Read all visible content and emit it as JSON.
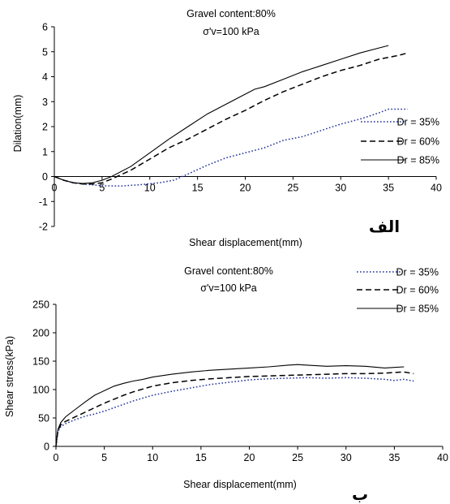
{
  "chart_data": [
    {
      "type": "line",
      "title_lines": [
        "Gravel content:80%",
        "σ'v=100 kPa"
      ],
      "xlabel": "Shear displacement(mm)",
      "ylabel": "Dilation(mm)",
      "panel_label": "الف",
      "xlim": [
        0,
        40
      ],
      "ylim": [
        -2,
        6
      ],
      "xticks": [
        0,
        5,
        10,
        15,
        20,
        25,
        30,
        35,
        40
      ],
      "yticks": [
        -2,
        -1,
        0,
        1,
        2,
        3,
        4,
        5,
        6
      ],
      "legend_position": "right",
      "grid": false,
      "series": [
        {
          "name": "Dr = 35%",
          "style": "dotted",
          "color": "#1f2f9a",
          "points": [
            [
              0,
              0
            ],
            [
              1,
              -0.15
            ],
            [
              2,
              -0.25
            ],
            [
              3,
              -0.3
            ],
            [
              5,
              -0.37
            ],
            [
              7,
              -0.38
            ],
            [
              9,
              -0.33
            ],
            [
              11,
              -0.25
            ],
            [
              12.5,
              -0.15
            ],
            [
              14,
              0.1
            ],
            [
              16,
              0.45
            ],
            [
              18,
              0.75
            ],
            [
              20,
              0.95
            ],
            [
              22,
              1.15
            ],
            [
              24,
              1.45
            ],
            [
              26,
              1.6
            ],
            [
              28,
              1.85
            ],
            [
              30,
              2.1
            ],
            [
              32,
              2.3
            ],
            [
              34,
              2.55
            ],
            [
              35,
              2.7
            ],
            [
              37,
              2.7
            ]
          ]
        },
        {
          "name": "Dr = 60%",
          "style": "dashed",
          "color": "#000000",
          "points": [
            [
              0,
              0
            ],
            [
              1,
              -0.15
            ],
            [
              2,
              -0.25
            ],
            [
              3,
              -0.3
            ],
            [
              4,
              -0.3
            ],
            [
              5,
              -0.25
            ],
            [
              6,
              -0.1
            ],
            [
              8,
              0.25
            ],
            [
              10,
              0.7
            ],
            [
              12,
              1.15
            ],
            [
              14,
              1.5
            ],
            [
              16,
              1.9
            ],
            [
              18,
              2.3
            ],
            [
              20,
              2.65
            ],
            [
              22,
              3.05
            ],
            [
              24,
              3.4
            ],
            [
              26,
              3.7
            ],
            [
              28,
              4.0
            ],
            [
              30,
              4.25
            ],
            [
              32,
              4.45
            ],
            [
              34,
              4.7
            ],
            [
              36,
              4.85
            ],
            [
              37,
              4.95
            ]
          ]
        },
        {
          "name": "Dr = 85%",
          "style": "solid",
          "color": "#000000",
          "points": [
            [
              0,
              0
            ],
            [
              1,
              -0.15
            ],
            [
              2,
              -0.25
            ],
            [
              3,
              -0.28
            ],
            [
              4,
              -0.25
            ],
            [
              5,
              -0.15
            ],
            [
              6,
              0.0
            ],
            [
              8,
              0.4
            ],
            [
              10,
              0.95
            ],
            [
              12,
              1.5
            ],
            [
              14,
              2.0
            ],
            [
              16,
              2.5
            ],
            [
              18,
              2.9
            ],
            [
              20,
              3.3
            ],
            [
              21,
              3.5
            ],
            [
              22,
              3.6
            ],
            [
              24,
              3.9
            ],
            [
              26,
              4.2
            ],
            [
              28,
              4.45
            ],
            [
              30,
              4.7
            ],
            [
              32,
              4.95
            ],
            [
              34,
              5.15
            ],
            [
              35,
              5.25
            ]
          ]
        }
      ]
    },
    {
      "type": "line",
      "title_lines": [
        "Gravel content:80%",
        "σ'v=100 kPa"
      ],
      "xlabel": "Shear displacement(mm)",
      "ylabel": "Shear stress(kPa)",
      "panel_label": "ب",
      "xlim": [
        0,
        40
      ],
      "ylim": [
        0,
        250
      ],
      "xticks": [
        0,
        5,
        10,
        15,
        20,
        25,
        30,
        35,
        40
      ],
      "yticks": [
        0,
        50,
        100,
        150,
        200,
        250
      ],
      "legend_position": "top-right",
      "grid": false,
      "series": [
        {
          "name": "Dr = 35%",
          "style": "dotted",
          "color": "#1f2f9a",
          "points": [
            [
              0,
              0
            ],
            [
              0.2,
              25
            ],
            [
              0.5,
              35
            ],
            [
              1,
              40
            ],
            [
              2,
              47
            ],
            [
              3,
              53
            ],
            [
              4,
              57
            ],
            [
              5,
              62
            ],
            [
              6,
              68
            ],
            [
              7,
              74
            ],
            [
              8,
              80
            ],
            [
              9,
              85
            ],
            [
              10,
              90
            ],
            [
              12,
              97
            ],
            [
              14,
              103
            ],
            [
              16,
              109
            ],
            [
              18,
              113
            ],
            [
              20,
              117
            ],
            [
              22,
              119
            ],
            [
              24,
              120
            ],
            [
              26,
              121
            ],
            [
              28,
              120
            ],
            [
              30,
              121
            ],
            [
              32,
              120
            ],
            [
              34,
              118
            ],
            [
              35,
              116
            ],
            [
              36,
              118
            ],
            [
              37,
              115
            ]
          ]
        },
        {
          "name": "Dr = 60%",
          "style": "dashed",
          "color": "#000000",
          "points": [
            [
              0,
              0
            ],
            [
              0.2,
              28
            ],
            [
              0.5,
              38
            ],
            [
              1,
              44
            ],
            [
              2,
              52
            ],
            [
              3,
              60
            ],
            [
              4,
              68
            ],
            [
              5,
              76
            ],
            [
              6,
              83
            ],
            [
              7,
              90
            ],
            [
              8,
              96
            ],
            [
              9,
              101
            ],
            [
              10,
              106
            ],
            [
              12,
              112
            ],
            [
              14,
              116
            ],
            [
              16,
              119
            ],
            [
              18,
              121
            ],
            [
              20,
              123
            ],
            [
              22,
              124
            ],
            [
              24,
              125
            ],
            [
              26,
              126
            ],
            [
              28,
              127
            ],
            [
              30,
              128
            ],
            [
              32,
              128
            ],
            [
              34,
              129
            ],
            [
              36,
              131
            ],
            [
              37,
              128
            ]
          ]
        },
        {
          "name": "Dr = 85%",
          "style": "solid",
          "color": "#000000",
          "points": [
            [
              0,
              0
            ],
            [
              0.2,
              30
            ],
            [
              0.5,
              42
            ],
            [
              1,
              52
            ],
            [
              2,
              65
            ],
            [
              3,
              78
            ],
            [
              4,
              90
            ],
            [
              5,
              98
            ],
            [
              6,
              106
            ],
            [
              7,
              111
            ],
            [
              8,
              115
            ],
            [
              9,
              118
            ],
            [
              10,
              122
            ],
            [
              12,
              127
            ],
            [
              14,
              131
            ],
            [
              16,
              134
            ],
            [
              18,
              136
            ],
            [
              20,
              138
            ],
            [
              22,
              140
            ],
            [
              24,
              143
            ],
            [
              25,
              144
            ],
            [
              26,
              143
            ],
            [
              28,
              141
            ],
            [
              30,
              142
            ],
            [
              32,
              141
            ],
            [
              34,
              138
            ],
            [
              35,
              139
            ],
            [
              36,
              140
            ]
          ]
        }
      ]
    }
  ]
}
